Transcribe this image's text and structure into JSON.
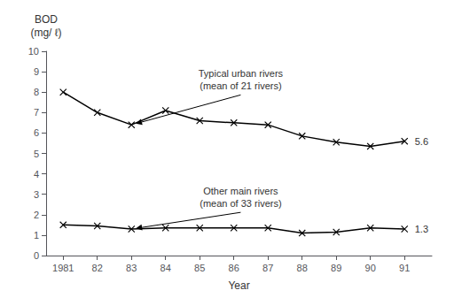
{
  "chart_data": {
    "type": "line",
    "xlabel": "Year",
    "ylabel": "BOD\n(mg/ ℓ)",
    "x": [
      1981,
      1982,
      1983,
      1984,
      1985,
      1986,
      1987,
      1988,
      1989,
      1990,
      1991
    ],
    "series": [
      {
        "color": "#000000",
        "marker": "x",
        "values": [
          8.0,
          7.0,
          6.4,
          7.1,
          6.6,
          6.5,
          6.4,
          5.85,
          5.55,
          5.35,
          5.6
        ]
      },
      {
        "color": "#000000",
        "marker": "x",
        "values": [
          1.5,
          1.45,
          1.3,
          1.35,
          1.35,
          1.35,
          1.35,
          1.1,
          1.15,
          1.35,
          1.3
        ]
      }
    ],
    "xlim": [
      1980.5,
      1991.8
    ],
    "xticks": [
      1981,
      {
        "value": 1982,
        "label": "82"
      },
      {
        "value": 1983,
        "label": "83"
      },
      {
        "value": 1984,
        "label": "84"
      },
      {
        "value": 1985,
        "label": "85"
      },
      {
        "value": 1986,
        "label": "86"
      },
      {
        "value": 1987,
        "label": "87"
      },
      {
        "value": 1988,
        "label": "88"
      },
      {
        "value": 1989,
        "label": "89"
      },
      {
        "value": 1990,
        "label": "90"
      },
      {
        "value": 1991,
        "label": "91"
      }
    ],
    "ylim": [
      0,
      10
    ],
    "yticks": [
      0,
      1,
      2,
      3,
      4,
      5,
      6,
      7,
      8,
      9,
      10
    ],
    "grid": false,
    "annotations": [
      {
        "text": "5.6",
        "xy": [
          1991.3,
          5.6
        ]
      },
      {
        "text": "1.3",
        "xy": [
          1991.3,
          1.3
        ]
      },
      {
        "text": "Typical urban rivers\n(mean of 21 rivers)",
        "xy": [
          1983,
          6.4
        ],
        "xytext": [
          1986.2,
          8.6
        ]
      },
      {
        "text": "Other main rivers\n(mean of 33 rivers)",
        "xy": [
          1983,
          1.3
        ],
        "xytext": [
          1986.2,
          2.85
        ]
      }
    ]
  }
}
